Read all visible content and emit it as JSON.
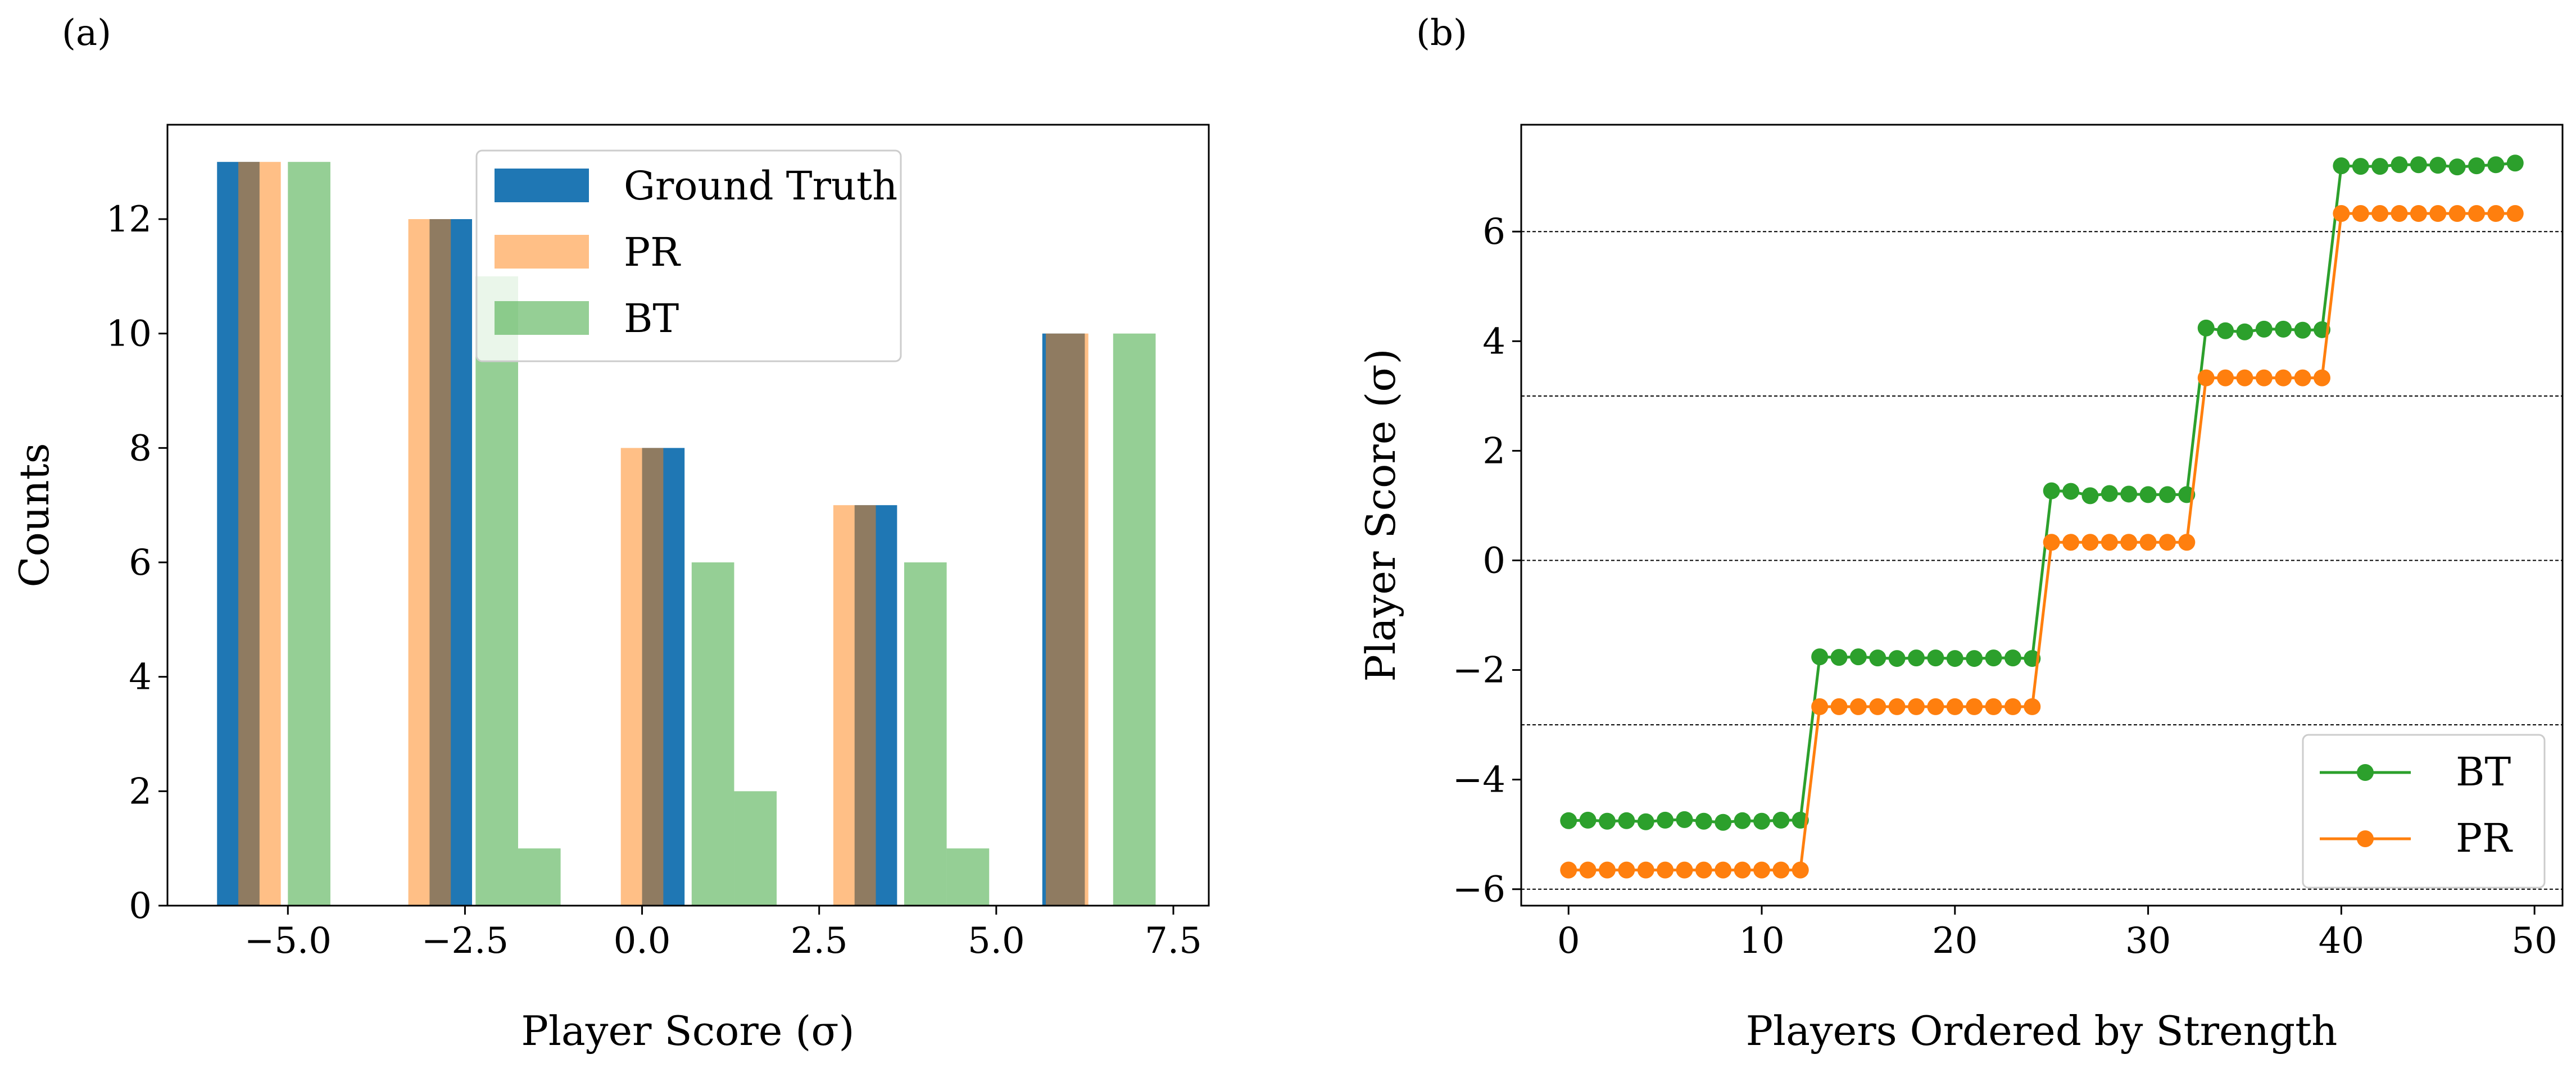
{
  "chart_data": [
    {
      "type": "bar",
      "panel_label": "(a)",
      "xlabel": "Player Score (σ)",
      "ylabel": "Counts",
      "xlim": [
        -6.7,
        8.0
      ],
      "ylim": [
        0,
        13.65
      ],
      "xticks": [
        -5.0,
        -2.5,
        0.0,
        2.5,
        5.0,
        7.5
      ],
      "xtick_labels": [
        "−5.0",
        "−2.5",
        "0.0",
        "2.5",
        "5.0",
        "7.5"
      ],
      "yticks": [
        0,
        2,
        4,
        6,
        8,
        10,
        12
      ],
      "ytick_labels": [
        "0",
        "2",
        "4",
        "6",
        "8",
        "10",
        "12"
      ],
      "bar_width": 0.6,
      "series": [
        {
          "name": "Ground Truth",
          "color": "#1f77b4",
          "alpha": 1.0,
          "bars": [
            {
              "x": -5.7,
              "value": 13
            },
            {
              "x": -2.7,
              "value": 12
            },
            {
              "x": 0.3,
              "value": 8
            },
            {
              "x": 3.3,
              "value": 7
            },
            {
              "x": 5.95,
              "value": 10
            }
          ]
        },
        {
          "name": "PR",
          "color": "#ff7f0e",
          "alpha": 0.5,
          "bars": [
            {
              "x": -5.4,
              "value": 13
            },
            {
              "x": -3.0,
              "value": 12
            },
            {
              "x": 0.0,
              "value": 8
            },
            {
              "x": 3.0,
              "value": 7
            },
            {
              "x": 6.0,
              "value": 10
            }
          ]
        },
        {
          "name": "BT",
          "color": "#2ca02c",
          "alpha": 0.5,
          "bars": [
            {
              "x": -4.7,
              "value": 13
            },
            {
              "x": -2.05,
              "value": 11
            },
            {
              "x": -1.45,
              "value": 1
            },
            {
              "x": 1.0,
              "value": 6
            },
            {
              "x": 1.6,
              "value": 2
            },
            {
              "x": 4.0,
              "value": 6
            },
            {
              "x": 4.6,
              "value": 1
            },
            {
              "x": 6.95,
              "value": 10
            }
          ]
        }
      ],
      "legend": {
        "position": "upper-center",
        "entries": [
          "Ground Truth",
          "PR",
          "BT"
        ]
      }
    },
    {
      "type": "line",
      "panel_label": "(b)",
      "xlabel": "Players Ordered by Strength",
      "ylabel": "Player Score (σ)",
      "xlim": [
        -2.45,
        51.45
      ],
      "ylim": [
        -6.3,
        7.95
      ],
      "xticks": [
        0,
        10,
        20,
        30,
        40,
        50
      ],
      "xtick_labels": [
        "0",
        "10",
        "20",
        "30",
        "40",
        "50"
      ],
      "yticks": [
        -6,
        -4,
        -2,
        0,
        2,
        4,
        6
      ],
      "ytick_labels": [
        "−6",
        "−4",
        "−2",
        "0",
        "2",
        "4",
        "6"
      ],
      "reference_lines": [
        -6,
        -3,
        0,
        3,
        6
      ],
      "series": [
        {
          "name": "BT",
          "color": "#2ca02c",
          "marker": "circle",
          "x": [
            0,
            1,
            2,
            3,
            4,
            5,
            6,
            7,
            8,
            9,
            10,
            11,
            12,
            13,
            14,
            15,
            16,
            17,
            18,
            19,
            20,
            21,
            22,
            23,
            24,
            25,
            26,
            27,
            28,
            29,
            30,
            31,
            32,
            33,
            34,
            35,
            36,
            37,
            38,
            39,
            40,
            41,
            42,
            43,
            44,
            45,
            46,
            47,
            48,
            49
          ],
          "y": [
            -4.75,
            -4.74,
            -4.76,
            -4.75,
            -4.77,
            -4.74,
            -4.73,
            -4.76,
            -4.78,
            -4.75,
            -4.76,
            -4.74,
            -4.74,
            -1.76,
            -1.77,
            -1.76,
            -1.78,
            -1.79,
            -1.78,
            -1.78,
            -1.79,
            -1.79,
            -1.78,
            -1.78,
            -1.79,
            1.27,
            1.26,
            1.18,
            1.22,
            1.21,
            1.2,
            1.2,
            1.2,
            4.24,
            4.19,
            4.17,
            4.22,
            4.22,
            4.2,
            4.21,
            7.2,
            7.19,
            7.19,
            7.22,
            7.22,
            7.21,
            7.18,
            7.2,
            7.22,
            7.25
          ]
        },
        {
          "name": "PR",
          "color": "#ff7f0e",
          "marker": "circle",
          "x": [
            0,
            1,
            2,
            3,
            4,
            5,
            6,
            7,
            8,
            9,
            10,
            11,
            12,
            13,
            14,
            15,
            16,
            17,
            18,
            19,
            20,
            21,
            22,
            23,
            24,
            25,
            26,
            27,
            28,
            29,
            30,
            31,
            32,
            33,
            34,
            35,
            36,
            37,
            38,
            39,
            40,
            41,
            42,
            43,
            44,
            45,
            46,
            47,
            48,
            49
          ],
          "y": [
            -5.65,
            -5.65,
            -5.65,
            -5.65,
            -5.65,
            -5.65,
            -5.65,
            -5.65,
            -5.65,
            -5.65,
            -5.65,
            -5.65,
            -5.65,
            -2.67,
            -2.67,
            -2.67,
            -2.67,
            -2.67,
            -2.67,
            -2.67,
            -2.67,
            -2.67,
            -2.67,
            -2.67,
            -2.67,
            0.33,
            0.33,
            0.33,
            0.33,
            0.33,
            0.33,
            0.33,
            0.33,
            3.33,
            3.33,
            3.33,
            3.33,
            3.33,
            3.33,
            3.33,
            6.33,
            6.33,
            6.33,
            6.33,
            6.33,
            6.33,
            6.33,
            6.33,
            6.33,
            6.33
          ]
        }
      ],
      "legend": {
        "position": "lower-right",
        "entries": [
          "BT",
          "PR"
        ]
      }
    }
  ]
}
